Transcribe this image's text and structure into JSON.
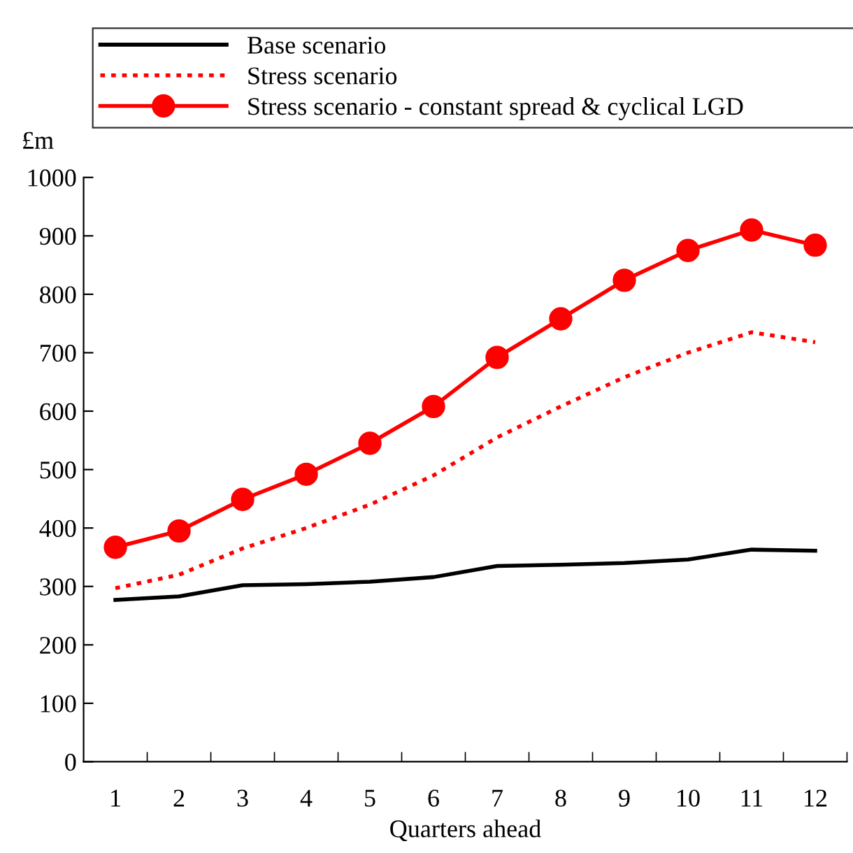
{
  "chart_data": {
    "type": "line",
    "ylabel": "£m",
    "xlabel": "Quarters ahead",
    "categories": [
      "1",
      "2",
      "3",
      "4",
      "5",
      "6",
      "7",
      "8",
      "9",
      "10",
      "11",
      "12"
    ],
    "series": [
      {
        "name": "Base scenario",
        "color": "#000000",
        "line_style": "solid",
        "marker": "none",
        "values": [
          277,
          283,
          302,
          304,
          308,
          316,
          335,
          337,
          340,
          346,
          363,
          361
        ]
      },
      {
        "name": "Stress scenario",
        "color": "#ff0000",
        "line_style": "dotted",
        "marker": "none",
        "values": [
          297,
          320,
          365,
          400,
          440,
          490,
          555,
          608,
          658,
          700,
          735,
          718
        ]
      },
      {
        "name": "Stress scenario - constant spread & cyclical LGD",
        "color": "#ff0000",
        "line_style": "solid",
        "marker": "circle",
        "values": [
          367,
          395,
          449,
          492,
          545,
          608,
          692,
          758,
          824,
          875,
          910,
          884
        ]
      }
    ],
    "ylim": [
      0,
      1000
    ],
    "yticks": [
      0,
      100,
      200,
      300,
      400,
      500,
      600,
      700,
      800,
      900,
      1000
    ],
    "grid": false,
    "legend": "top"
  }
}
